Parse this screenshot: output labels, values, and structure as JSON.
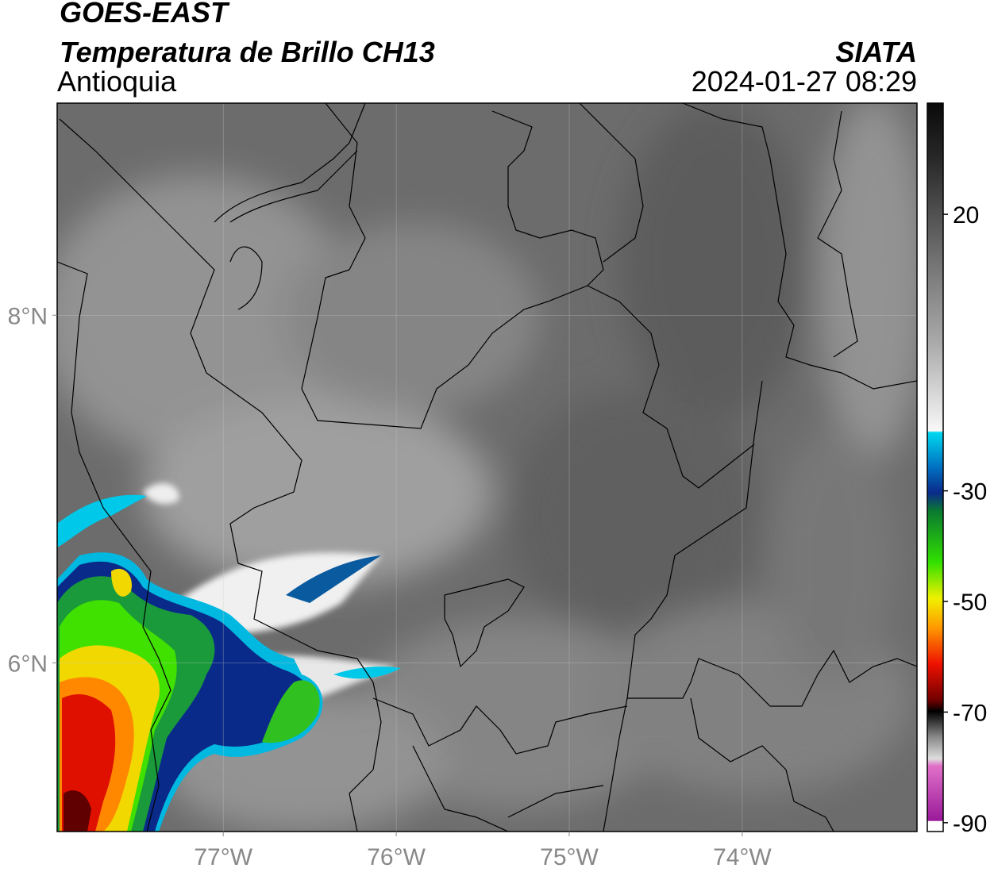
{
  "header": {
    "title": "GOES-EAST",
    "subtitle": "Temperatura de Brillo CH13",
    "source": "SIATA",
    "region": "Antioquia",
    "timestamp": "2024-01-27 08:29"
  },
  "map": {
    "lon_lim": [
      -77.96,
      -72.99
    ],
    "lat_lim": [
      5.03,
      9.22
    ],
    "lon_ticks": [
      {
        "value": -77,
        "label": "77°W"
      },
      {
        "value": -76,
        "label": "76°W"
      },
      {
        "value": -75,
        "label": "75°W"
      },
      {
        "value": -74,
        "label": "74°W"
      }
    ],
    "lat_ticks": [
      {
        "value": 6,
        "label": "6°N"
      },
      {
        "value": 8,
        "label": "8°N"
      }
    ]
  },
  "colorbar": {
    "lim": [
      -91.6,
      40.1
    ],
    "ticks": [
      20,
      -30,
      -50,
      -70,
      -90
    ]
  }
}
